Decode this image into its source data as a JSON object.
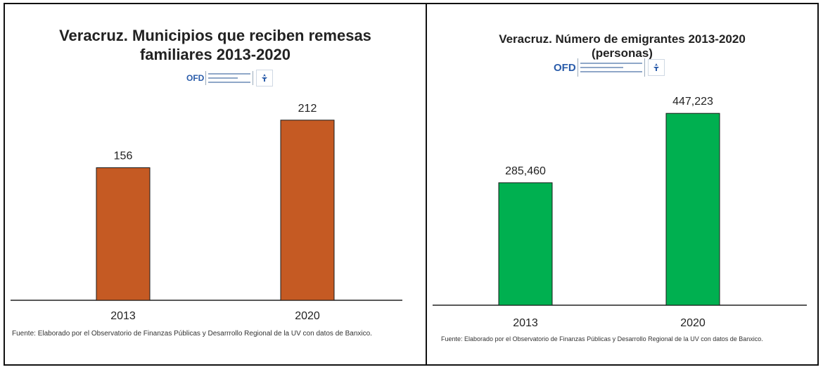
{
  "panels": [
    {
      "title_lines": [
        "Veracruz. Municipios  que reciben remesas",
        "familiares 2013-2020"
      ],
      "logo_text": "OFD",
      "source": "Fuente: Elaborado por el Observatorio de  Finanzas Públicas  y Desarrrollo Regional de la UV con datos de Banxico."
    },
    {
      "title_lines": [
        "Veracruz. Número de emigrantes 2013-2020",
        "(personas)"
      ],
      "logo_text": "OFD",
      "source": "Fuente: Elaborado por el Observatorio de  Finanzas Públicas  y Desarrollo Regional de la UV con datos de Banxico."
    }
  ],
  "chart_data": [
    {
      "type": "bar",
      "title": "Veracruz. Municipios  que reciben remesas familiares 2013-2020",
      "categories": [
        "2013",
        "2020"
      ],
      "values": [
        156,
        212
      ],
      "data_labels": [
        "156",
        "212"
      ],
      "color": "#c55a23",
      "ylim": [
        0,
        240
      ],
      "grid": false,
      "legend": "none"
    },
    {
      "type": "bar",
      "title": "Veracruz. Número de emigrantes 2013-2020 (personas)",
      "categories": [
        "2013",
        "2020"
      ],
      "values": [
        285460,
        447223
      ],
      "data_labels": [
        "285,460",
        "447,223"
      ],
      "color": "#00b050",
      "ylim": [
        0,
        500000
      ],
      "grid": false,
      "legend": "none"
    }
  ]
}
